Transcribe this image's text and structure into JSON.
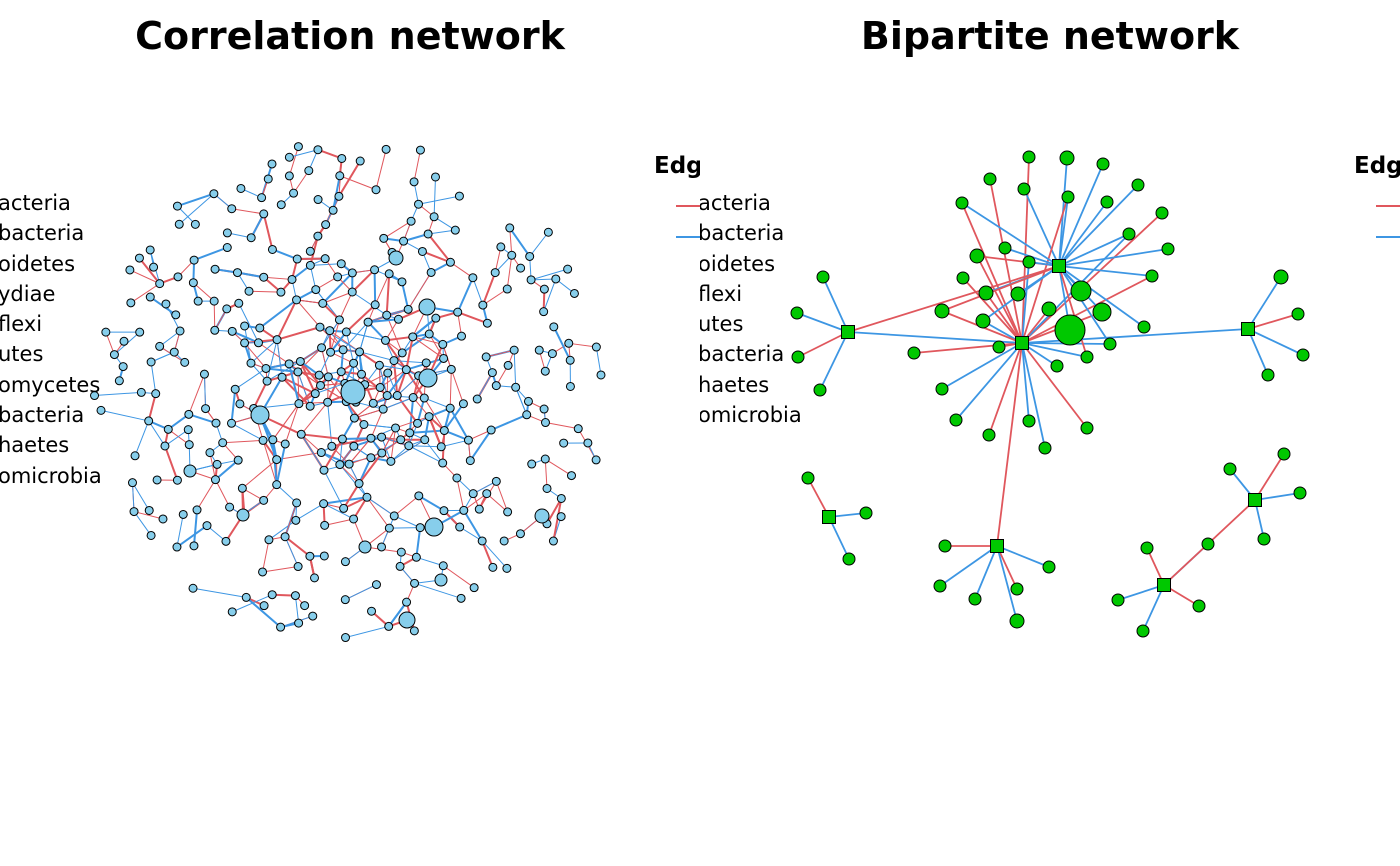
{
  "colors": {
    "positive_edge": "#e0575d",
    "negative_edge": "#3d96e3",
    "correlation_node": "#87ceeb",
    "bipartite_node": "#00c800",
    "node_border": "#000000"
  },
  "left_panel": {
    "title": "Correlation network",
    "legend_title": "Edg",
    "phyla": [
      "acteria",
      "bacteria",
      "oidetes",
      "ydiae",
      "flexi",
      "utes",
      "omycetes",
      "bacteria",
      "haetes",
      "omicrobia"
    ]
  },
  "right_panel": {
    "title": "Bipartite network",
    "legend_title": "Edg",
    "phyla": [
      "acteria",
      "bacteria",
      "oidetes",
      "flexi",
      "utes",
      "bacteria",
      "haetes",
      "omicrobia"
    ]
  }
}
